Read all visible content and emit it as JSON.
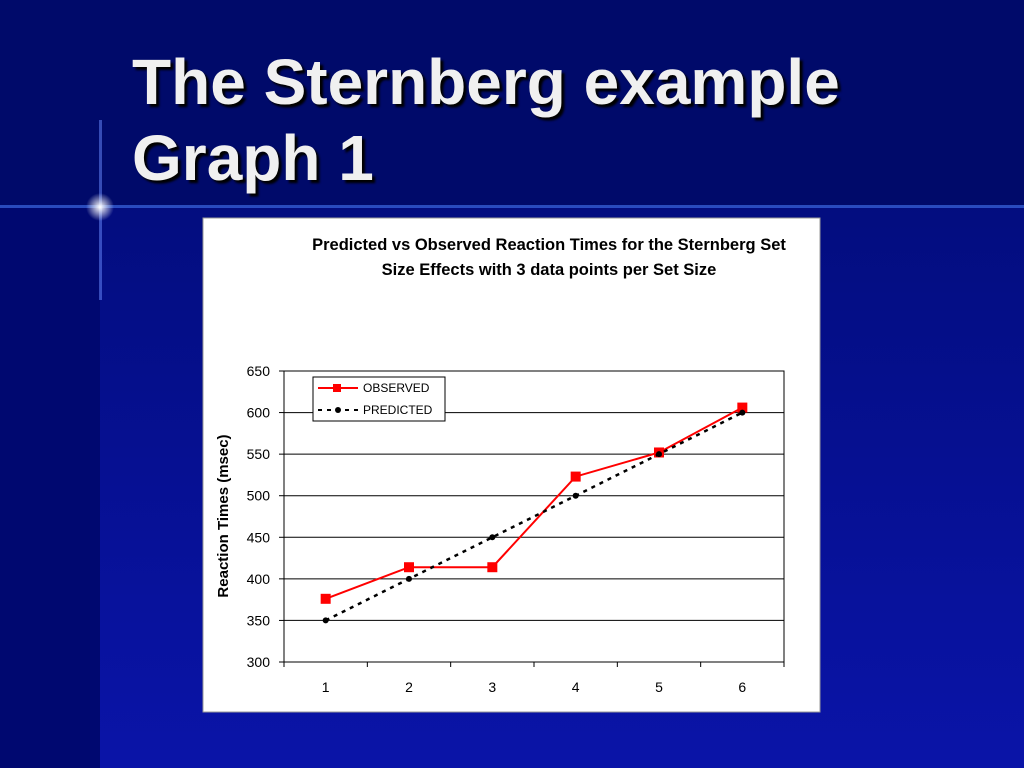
{
  "slide_title": "The Sternberg example Graph 1",
  "chart_data": {
    "type": "line",
    "title": "Predicted vs Observed Reaction Times for the Sternberg Set Size Effects with 3 data points per Set Size",
    "ylabel": "Reaction Times (msec)",
    "categories": [
      1,
      2,
      3,
      4,
      5,
      6
    ],
    "series": [
      {
        "name": "OBSERVED",
        "color": "#ff0000",
        "marker": "square",
        "dashed": false,
        "values": [
          376,
          414,
          414,
          523,
          552,
          606
        ]
      },
      {
        "name": "PREDICTED",
        "color": "#000000",
        "marker": "circle",
        "dashed": true,
        "values": [
          350,
          400,
          450,
          500,
          550,
          600
        ]
      }
    ],
    "ylim": [
      300,
      650
    ],
    "yticks": [
      300,
      350,
      400,
      450,
      500,
      550,
      600,
      650
    ],
    "grid": true,
    "legend": "top-left"
  }
}
